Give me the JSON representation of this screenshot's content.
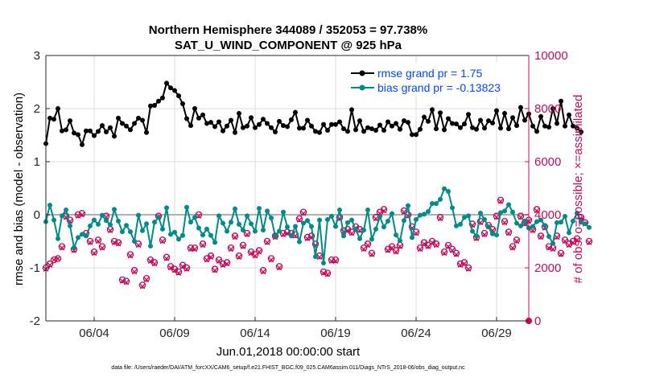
{
  "chart_data": {
    "type": "line",
    "title": "Northern Hemisphere 344089 / 352053 = 97.738%",
    "subtitle": "SAT_U_WIND_COMPONENT @ 925 hPa",
    "xlabel": "Jun.01,2018 00:00:00 start",
    "ylabel_left": "rmse and bias (model - observation)",
    "ylabel_right": "# of obs: o=possible; ×=assimilated",
    "x_ticks": [
      "06/04",
      "06/09",
      "06/14",
      "06/19",
      "06/24",
      "06/29"
    ],
    "x_tick_days": [
      4,
      9,
      14,
      19,
      24,
      29
    ],
    "xlim_days": [
      1,
      31
    ],
    "ylim_left": [
      -2,
      3
    ],
    "ylim_right": [
      0,
      10000
    ],
    "y_ticks_left": [
      "-2",
      "-1",
      "0",
      "1",
      "2",
      "3"
    ],
    "y_ticks_right": [
      "0",
      "2000",
      "4000",
      "6000",
      "8000",
      "10000"
    ],
    "grid": true,
    "legend_position": "top-right",
    "legend": [
      "rmse grand pr = 1.75",
      "bias grand pr = -0.13823"
    ],
    "colors": {
      "rmse": "#000000",
      "bias": "#008b8b",
      "obs": "#cc0a59",
      "zero_line": "#b0b0b0"
    },
    "series": [
      {
        "name": "rmse",
        "axis": "left",
        "start_day": 1,
        "step_days": 0.25,
        "values": [
          1.34,
          1.82,
          1.8,
          2.0,
          1.58,
          1.6,
          1.77,
          1.54,
          1.51,
          1.32,
          1.58,
          1.58,
          1.49,
          1.57,
          1.68,
          1.56,
          1.64,
          1.48,
          1.82,
          1.72,
          1.67,
          1.6,
          1.72,
          1.82,
          1.78,
          1.55,
          2.05,
          2.06,
          2.14,
          2.2,
          2.48,
          2.39,
          2.34,
          2.24,
          2.09,
          1.81,
          1.68,
          2.0,
          1.82,
          1.88,
          1.72,
          1.74,
          1.66,
          1.75,
          1.58,
          1.67,
          1.78,
          1.55,
          1.91,
          1.64,
          1.67,
          1.83,
          1.64,
          1.7,
          1.8,
          1.72,
          1.64,
          1.56,
          1.76,
          1.68,
          1.66,
          1.79,
          1.93,
          1.63,
          1.63,
          1.78,
          1.67,
          1.57,
          1.55,
          1.7,
          1.59,
          1.7,
          1.7,
          1.75,
          1.62,
          1.57,
          1.98,
          1.6,
          1.77,
          1.57,
          1.64,
          1.62,
          1.59,
          1.69,
          1.59,
          1.75,
          1.67,
          1.72,
          1.61,
          1.77,
          1.74,
          1.51,
          1.51,
          1.61,
          1.84,
          1.76,
          1.98,
          1.62,
          1.92,
          1.6,
          1.81,
          1.72,
          1.71,
          1.64,
          1.71,
          1.89,
          1.64,
          1.61,
          1.78,
          1.63,
          1.77,
          1.73,
          1.96,
          1.63,
          1.91,
          1.62,
          1.83,
          1.68,
          2.02,
          1.78,
          1.9,
          1.67,
          1.57,
          1.85,
          1.67,
          1.65,
          2.0,
          1.72,
          2.14,
          1.67,
          1.88,
          1.67,
          1.63,
          1.56
        ],
        "marker": "filled-circle"
      },
      {
        "name": "bias",
        "axis": "left",
        "start_day": 1,
        "step_days": 0.25,
        "values": [
          -0.13,
          0.18,
          -0.1,
          -0.45,
          -0.02,
          0.09,
          -0.21,
          -0.62,
          -0.43,
          -0.37,
          -0.4,
          -0.21,
          -0.1,
          -0.18,
          -0.01,
          -0.11,
          -0.19,
          0.1,
          -0.12,
          -0.32,
          -0.2,
          -0.32,
          -0.5,
          -0.01,
          -0.3,
          -0.17,
          -0.59,
          -0.14,
          -0.05,
          -0.27,
          0.13,
          -0.37,
          -0.33,
          -0.46,
          -0.39,
          0.14,
          -0.14,
          -0.05,
          -0.25,
          -0.38,
          -0.27,
          -0.39,
          -0.52,
          -0.02,
          -0.16,
          -0.31,
          -0.14,
          0.11,
          -0.18,
          -0.29,
          -0.02,
          -0.17,
          -0.31,
          0.12,
          -0.29,
          0.07,
          -0.06,
          -0.4,
          -0.31,
          0.05,
          -0.23,
          -0.4,
          -0.22,
          -0.51,
          -0.16,
          -0.11,
          -0.22,
          -0.79,
          -0.1,
          -0.91,
          -0.09,
          -0.03,
          -0.22,
          0.09,
          -0.4,
          -0.15,
          -0.1,
          -0.28,
          -0.45,
          -0.29,
          0.09,
          -0.46,
          -0.27,
          -0.04,
          -0.23,
          -0.12,
          0.02,
          -0.38,
          -0.49,
          -0.11,
          0.17,
          -0.43,
          -0.09,
          -0.01,
          0.01,
          0.06,
          0.21,
          0.21,
          0.29,
          0.49,
          0.44,
          0.13,
          -0.21,
          -0.18,
          -0.05,
          -0.02,
          -0.31,
          -0.4,
          0.03,
          -0.09,
          -0.23,
          -0.36,
          -0.38,
          0.04,
          0.07,
          0.19,
          0.05,
          -0.16,
          -0.21,
          -0.12,
          -0.25,
          -0.22,
          -0.13,
          -0.1,
          -0.2,
          -0.41,
          -0.54,
          -0.15,
          -0.14,
          -0.03,
          -0.34,
          -0.12,
          0.03,
          -0.14,
          -0.17,
          -0.24
        ],
        "marker": "filled-circle"
      },
      {
        "name": "obs possible",
        "axis": "right",
        "start_day": 1,
        "step_days": 0.25,
        "values": [
          2000,
          2150,
          2300,
          2350,
          2800,
          3950,
          3800,
          2700,
          4000,
          4050,
          3300,
          3000,
          2600,
          3050,
          2800,
          3950,
          3450,
          3000,
          2950,
          1550,
          1500,
          2500,
          1900,
          2900,
          1350,
          1600,
          2300,
          2200,
          3950,
          3050,
          2400,
          2050,
          1950,
          1850,
          2100,
          2000,
          2750,
          2750,
          4000,
          2900,
          2350,
          2450,
          1950,
          2300,
          2150,
          2200,
          2750,
          3200,
          2450,
          2850,
          3300,
          2600,
          2500,
          2650,
          1900,
          3000,
          2350,
          3200,
          2050,
          3300,
          3350,
          3300,
          3250,
          3850,
          4100,
          3150,
          3200,
          2900,
          2450,
          1850,
          1800,
          2300,
          2300,
          3900,
          3400,
          3450,
          3350,
          3550,
          3450,
          2750,
          2900,
          2550,
          3900,
          4100,
          4200,
          2700,
          2800,
          2650,
          2850,
          4150,
          4000,
          3550,
          3350,
          2750,
          2950,
          2850,
          3000,
          2900,
          3900,
          2600,
          2850,
          2700,
          2550,
          2150,
          2200,
          2000,
          3650,
          3150,
          3750,
          3300,
          3600,
          3450,
          3950,
          4550,
          3750,
          3350,
          2800,
          3050,
          3950,
          3700,
          3800,
          3450,
          4200,
          3200,
          3550,
          2800,
          2750,
          3200,
          2550,
          3050,
          2900,
          3000,
          3100,
          3900,
          3700,
          3000
        ],
        "marker": "open-circle"
      },
      {
        "name": "obs assimilated",
        "axis": "right",
        "start_day": 1,
        "step_days": 0.25,
        "values": [
          1950,
          2100,
          2300,
          2350,
          2750,
          3900,
          3750,
          2650,
          3950,
          4000,
          3250,
          2950,
          2550,
          3000,
          2750,
          3900,
          3400,
          2950,
          2900,
          1500,
          1450,
          2450,
          1850,
          2850,
          1300,
          1550,
          2250,
          2150,
          3900,
          3000,
          2350,
          2000,
          1900,
          1800,
          2050,
          1950,
          2700,
          2700,
          3950,
          2850,
          2300,
          2400,
          1900,
          2250,
          2100,
          2150,
          2700,
          3150,
          2400,
          2800,
          3250,
          2550,
          2450,
          2600,
          1850,
          2950,
          2300,
          3150,
          2000,
          3250,
          3300,
          3250,
          3200,
          3800,
          4050,
          3100,
          3150,
          2850,
          2400,
          1800,
          1750,
          2250,
          2250,
          3850,
          3350,
          3400,
          3300,
          3500,
          3400,
          2700,
          2850,
          2500,
          3850,
          4050,
          4150,
          2650,
          2750,
          2600,
          2800,
          4100,
          3950,
          3500,
          3300,
          2700,
          2900,
          2800,
          2950,
          2850,
          3850,
          2550,
          2800,
          2650,
          2500,
          2100,
          2150,
          1950,
          3600,
          3100,
          3700,
          3250,
          3550,
          3400,
          3900,
          4500,
          3700,
          3300,
          2750,
          3000,
          3900,
          3650,
          3750,
          3400,
          4150,
          3150,
          3500,
          2750,
          2700,
          3150,
          2500,
          3000,
          2850,
          2950,
          3050,
          3850,
          3650,
          2950
        ]
      }
    ],
    "last_obs_point": {
      "day": 31,
      "value": 0
    },
    "footer": "data file: /Users/raeder/DAI/ATM_forcXX/CAM6_setup/f.e21.FHIST_BGC.f09_025.CAM6assim.011/Diags_NTrS_2018-06/obs_diag_output.nc"
  }
}
